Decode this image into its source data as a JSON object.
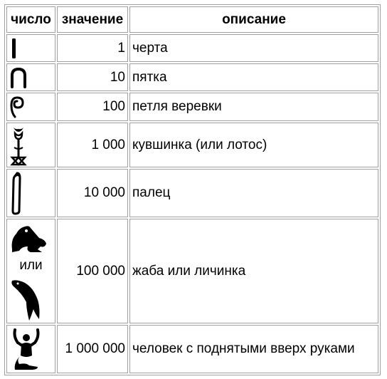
{
  "table": {
    "headers": {
      "glyph": "число",
      "value": "значение",
      "description": "описание"
    },
    "rows": [
      {
        "icon": "stroke-icon",
        "value": "1",
        "description": "черта"
      },
      {
        "icon": "heel-bone-icon",
        "value": "10",
        "description": "пятка"
      },
      {
        "icon": "rope-coil-icon",
        "value": "100",
        "description": "петля веревки"
      },
      {
        "icon": "lotus-icon",
        "value": "1 000",
        "description": "кувшинка (или лотос)"
      },
      {
        "icon": "finger-icon",
        "value": "10 000",
        "description": "палец"
      },
      {
        "icon": "frog-icon",
        "alt_icon": "tadpole-icon",
        "glyph_or": "или",
        "value": "100 000",
        "description": "жаба или личинка"
      },
      {
        "icon": "raised-arms-man-icon",
        "value": "1 000 000",
        "description": "человек с поднятыми вверх руками"
      }
    ]
  }
}
